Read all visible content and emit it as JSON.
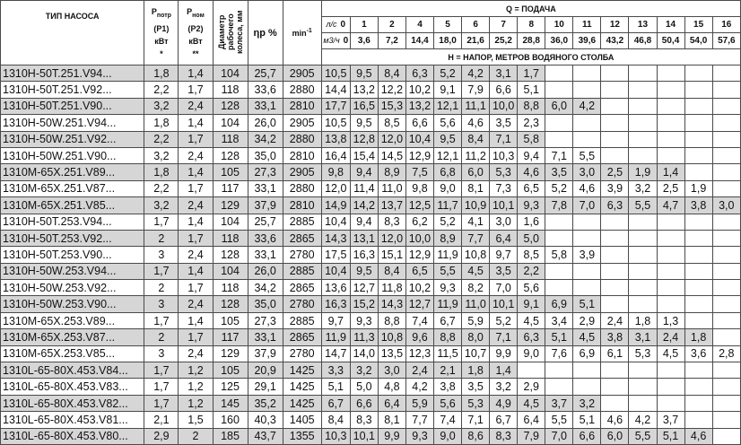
{
  "header": {
    "pump_type": "ТИП НАСОСА",
    "p1": {
      "symbol": "P",
      "sub": "потр",
      "code": "(P1)",
      "unit": "кВт",
      "note": "*"
    },
    "p2": {
      "symbol": "P",
      "sub": "ном",
      "code": "(P2)",
      "unit": "кВт",
      "note": "**"
    },
    "diameter": "Диаметр рабочего колеса, мм",
    "efficiency": "ηр %",
    "speed": {
      "text": "min",
      "sup": "-1"
    },
    "flow_title": "Q = ПОДАЧА",
    "flow_ls": {
      "label": "л/с",
      "values": [
        "0",
        "1",
        "2",
        "4",
        "5",
        "6",
        "7",
        "8",
        "10",
        "11",
        "12",
        "13",
        "14",
        "15",
        "16"
      ]
    },
    "flow_m3h": {
      "label": "м3/ч",
      "values": [
        "0",
        "3,6",
        "7,2",
        "14,4",
        "18,0",
        "21,6",
        "25,2",
        "28,8",
        "36,0",
        "39,6",
        "43,2",
        "46,8",
        "50,4",
        "54,0",
        "57,6"
      ]
    },
    "head_title": "Н = НАПОР, МЕТРОВ ВОДЯНОГО СТОЛБА"
  },
  "rows": [
    {
      "model": "1310H-50T.251.V94...",
      "p1": "1,8",
      "p2": "1,4",
      "diameter": "104",
      "efficiency": "25,7",
      "speed": "2905",
      "heads": [
        "10,5",
        "9,5",
        "8,4",
        "6,3",
        "5,2",
        "4,2",
        "3,1",
        "1,7"
      ]
    },
    {
      "model": "1310H-50T.251.V92...",
      "p1": "2,2",
      "p2": "1,7",
      "diameter": "118",
      "efficiency": "33,6",
      "speed": "2880",
      "heads": [
        "14,4",
        "13,2",
        "12,2",
        "10,2",
        "9,1",
        "7,9",
        "6,6",
        "5,1"
      ]
    },
    {
      "model": "1310H-50T.251.V90...",
      "p1": "3,2",
      "p2": "2,4",
      "diameter": "128",
      "efficiency": "33,1",
      "speed": "2810",
      "heads": [
        "17,7",
        "16,5",
        "15,3",
        "13,2",
        "12,1",
        "11,1",
        "10,0",
        "8,8",
        "6,0",
        "4,2"
      ]
    },
    {
      "model": "1310H-50W.251.V94...",
      "p1": "1,8",
      "p2": "1,4",
      "diameter": "104",
      "efficiency": "26,0",
      "speed": "2905",
      "heads": [
        "10,5",
        "9,5",
        "8,5",
        "6,6",
        "5,6",
        "4,6",
        "3,5",
        "2,3"
      ]
    },
    {
      "model": "1310H-50W.251.V92...",
      "p1": "2,2",
      "p2": "1,7",
      "diameter": "118",
      "efficiency": "34,2",
      "speed": "2880",
      "heads": [
        "13,8",
        "12,8",
        "12,0",
        "10,4",
        "9,5",
        "8,4",
        "7,1",
        "5,8"
      ]
    },
    {
      "model": "1310H-50W.251.V90...",
      "p1": "3,2",
      "p2": "2,4",
      "diameter": "128",
      "efficiency": "35,0",
      "speed": "2810",
      "heads": [
        "16,4",
        "15,4",
        "14,5",
        "12,9",
        "12,1",
        "11,2",
        "10,3",
        "9,4",
        "7,1",
        "5,5"
      ]
    },
    {
      "model": "1310M-65X.251.V89...",
      "p1": "1,8",
      "p2": "1,4",
      "diameter": "105",
      "efficiency": "27,3",
      "speed": "2905",
      "heads": [
        "9,8",
        "9,4",
        "8,9",
        "7,5",
        "6,8",
        "6,0",
        "5,3",
        "4,6",
        "3,5",
        "3,0",
        "2,5",
        "1,9",
        "1,4"
      ]
    },
    {
      "model": "1310M-65X.251.V87...",
      "p1": "2,2",
      "p2": "1,7",
      "diameter": "117",
      "efficiency": "33,1",
      "speed": "2880",
      "heads": [
        "12,0",
        "11,4",
        "11,0",
        "9,8",
        "9,0",
        "8,1",
        "7,3",
        "6,5",
        "5,2",
        "4,6",
        "3,9",
        "3,2",
        "2,5",
        "1,9"
      ]
    },
    {
      "model": "1310M-65X.251.V85...",
      "p1": "3,2",
      "p2": "2,4",
      "diameter": "129",
      "efficiency": "37,9",
      "speed": "2810",
      "heads": [
        "14,9",
        "14,2",
        "13,7",
        "12,5",
        "11,7",
        "10,9",
        "10,1",
        "9,3",
        "7,8",
        "7,0",
        "6,3",
        "5,5",
        "4,7",
        "3,8",
        "3,0"
      ]
    },
    {
      "model": "1310H-50T.253.V94...",
      "p1": "1,7",
      "p2": "1,4",
      "diameter": "104",
      "efficiency": "25,7",
      "speed": "2885",
      "heads": [
        "10,4",
        "9,4",
        "8,3",
        "6,2",
        "5,2",
        "4,1",
        "3,0",
        "1,6"
      ]
    },
    {
      "model": "1310H-50T.253.V92...",
      "p1": "2",
      "p2": "1,7",
      "diameter": "118",
      "efficiency": "33,6",
      "speed": "2865",
      "heads": [
        "14,3",
        "13,1",
        "12,0",
        "10,0",
        "8,9",
        "7,7",
        "6,4",
        "5,0"
      ]
    },
    {
      "model": "1310H-50T.253.V90...",
      "p1": "3",
      "p2": "2,4",
      "diameter": "128",
      "efficiency": "33,1",
      "speed": "2780",
      "heads": [
        "17,5",
        "16,3",
        "15,1",
        "12,9",
        "11,9",
        "10,8",
        "9,7",
        "8,5",
        "5,8",
        "3,9"
      ]
    },
    {
      "model": "1310H-50W.253.V94...",
      "p1": "1,7",
      "p2": "1,4",
      "diameter": "104",
      "efficiency": "26,0",
      "speed": "2885",
      "heads": [
        "10,4",
        "9,5",
        "8,4",
        "6,5",
        "5,5",
        "4,5",
        "3,5",
        "2,2"
      ]
    },
    {
      "model": "1310H-50W.253.V92...",
      "p1": "2",
      "p2": "1,7",
      "diameter": "118",
      "efficiency": "34,2",
      "speed": "2865",
      "heads": [
        "13,6",
        "12,7",
        "11,8",
        "10,2",
        "9,3",
        "8,2",
        "7,0",
        "5,6"
      ]
    },
    {
      "model": "1310H-50W.253.V90...",
      "p1": "3",
      "p2": "2,4",
      "diameter": "128",
      "efficiency": "35,0",
      "speed": "2780",
      "heads": [
        "16,3",
        "15,2",
        "14,3",
        "12,7",
        "11,9",
        "11,0",
        "10,1",
        "9,1",
        "6,9",
        "5,1"
      ]
    },
    {
      "model": "1310M-65X.253.V89...",
      "p1": "1,7",
      "p2": "1,4",
      "diameter": "105",
      "efficiency": "27,3",
      "speed": "2885",
      "heads": [
        "9,7",
        "9,3",
        "8,8",
        "7,4",
        "6,7",
        "5,9",
        "5,2",
        "4,5",
        "3,4",
        "2,9",
        "2,4",
        "1,8",
        "1,3"
      ]
    },
    {
      "model": "1310M-65X.253.V87...",
      "p1": "2",
      "p2": "1,7",
      "diameter": "117",
      "efficiency": "33,1",
      "speed": "2865",
      "heads": [
        "11,9",
        "11,3",
        "10,8",
        "9,6",
        "8,8",
        "8,0",
        "7,1",
        "6,3",
        "5,1",
        "4,5",
        "3,8",
        "3,1",
        "2,4",
        "1,8"
      ]
    },
    {
      "model": "1310M-65X.253.V85...",
      "p1": "3",
      "p2": "2,4",
      "diameter": "129",
      "efficiency": "37,9",
      "speed": "2780",
      "heads": [
        "14,7",
        "14,0",
        "13,5",
        "12,3",
        "11,5",
        "10,7",
        "9,9",
        "9,0",
        "7,6",
        "6,9",
        "6,1",
        "5,3",
        "4,5",
        "3,6",
        "2,8"
      ]
    },
    {
      "model": "1310L-65-80X.453.V84...",
      "p1": "1,7",
      "p2": "1,2",
      "diameter": "105",
      "efficiency": "20,9",
      "speed": "1425",
      "heads": [
        "3,3",
        "3,2",
        "3,0",
        "2,4",
        "2,1",
        "1,8",
        "1,4"
      ]
    },
    {
      "model": "1310L-65-80X.453.V83...",
      "p1": "1,7",
      "p2": "1,2",
      "diameter": "125",
      "efficiency": "29,1",
      "speed": "1425",
      "heads": [
        "5,1",
        "5,0",
        "4,8",
        "4,2",
        "3,8",
        "3,5",
        "3,2",
        "2,9"
      ]
    },
    {
      "model": "1310L-65-80X.453.V82...",
      "p1": "1,7",
      "p2": "1,2",
      "diameter": "145",
      "efficiency": "35,2",
      "speed": "1425",
      "heads": [
        "6,7",
        "6,6",
        "6,4",
        "5,9",
        "5,6",
        "5,3",
        "4,9",
        "4,5",
        "3,7",
        "3,2"
      ]
    },
    {
      "model": "1310L-65-80X.453.V81...",
      "p1": "2,1",
      "p2": "1,5",
      "diameter": "160",
      "efficiency": "40,3",
      "speed": "1405",
      "heads": [
        "8,4",
        "8,3",
        "8,1",
        "7,7",
        "7,4",
        "7,1",
        "6,7",
        "6,4",
        "5,5",
        "5,1",
        "4,6",
        "4,2",
        "3,7"
      ]
    },
    {
      "model": "1310L-65-80X.453.V80...",
      "p1": "2,9",
      "p2": "2",
      "diameter": "185",
      "efficiency": "43,7",
      "speed": "1355",
      "heads": [
        "10,3",
        "10,1",
        "9,9",
        "9,3",
        "9,0",
        "8,6",
        "8,3",
        "7,9",
        "7,0",
        "6,6",
        "6,0",
        "5,5",
        "5,1",
        "4,6"
      ]
    }
  ]
}
